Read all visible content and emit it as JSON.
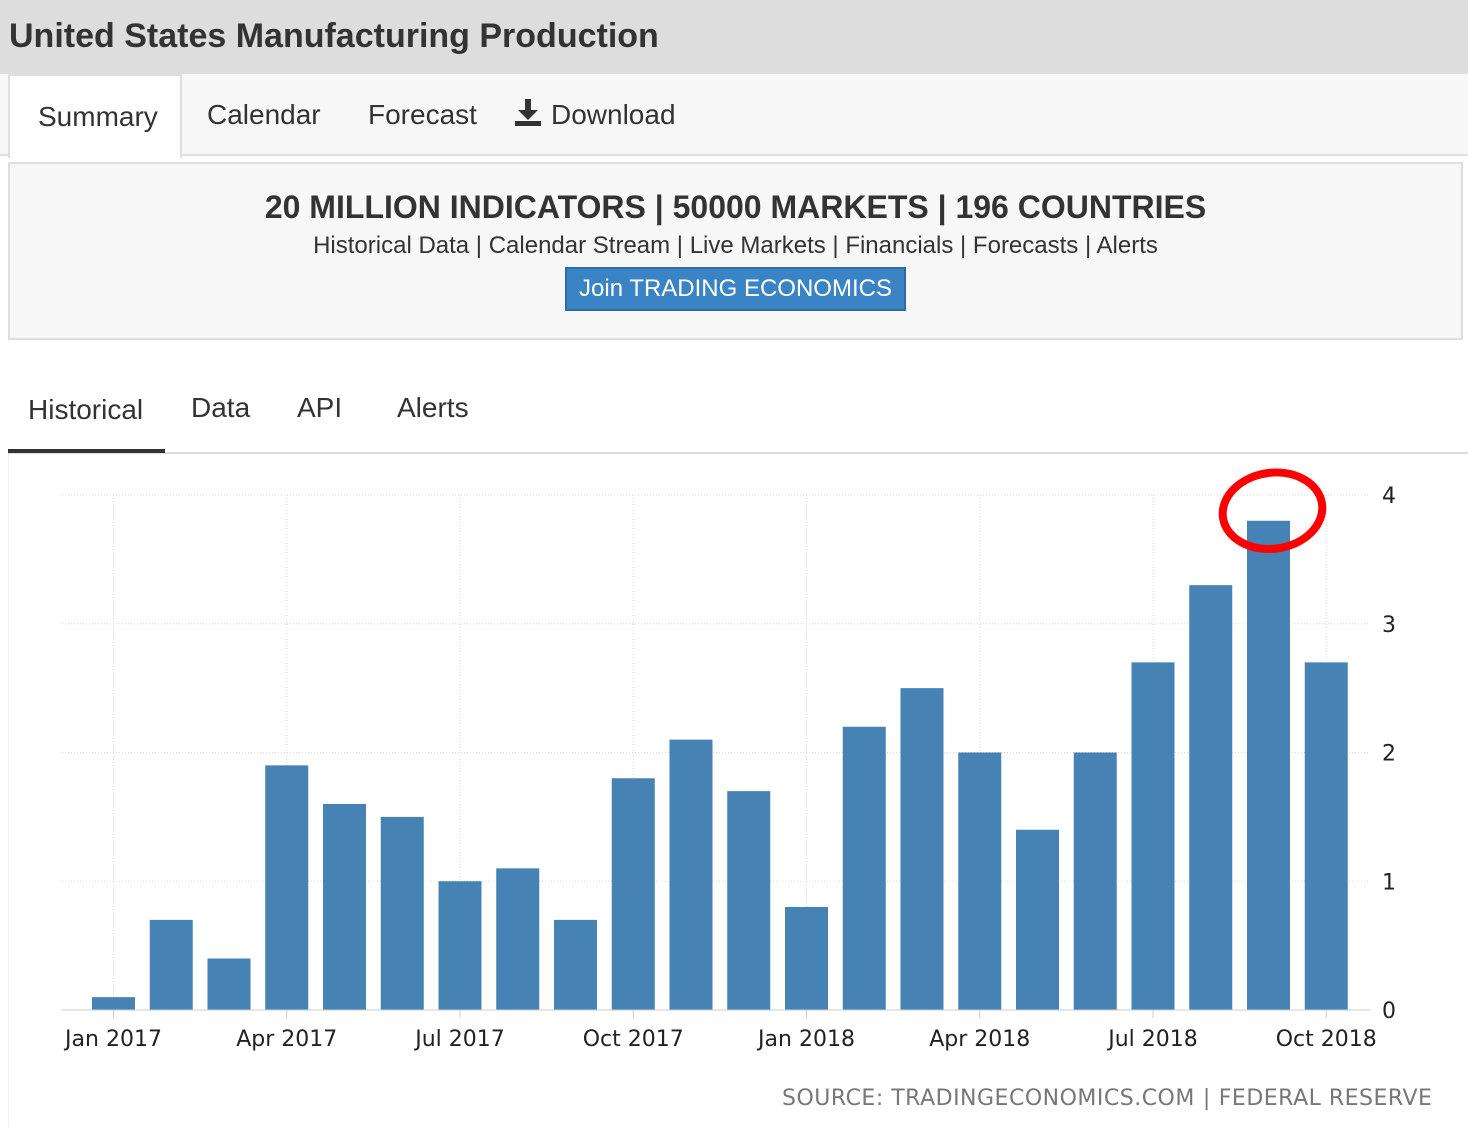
{
  "page": {
    "title": "United States Manufacturing Production"
  },
  "top_tabs": [
    {
      "label": "Summary",
      "active": true
    },
    {
      "label": "Calendar",
      "active": false
    },
    {
      "label": "Forecast",
      "active": false
    },
    {
      "label": "Download",
      "icon": "download-icon",
      "active": false
    }
  ],
  "promo": {
    "headline": "20 MILLION INDICATORS | 50000 MARKETS | 196 COUNTRIES",
    "links": "Historical Data | Calendar Stream | Live Markets | Financials | Forecasts | Alerts",
    "button": "Join TRADING ECONOMICS"
  },
  "chart_tabs": [
    {
      "label": "Historical",
      "active": true
    },
    {
      "label": "Data",
      "active": false
    },
    {
      "label": "API",
      "active": false
    },
    {
      "label": "Alerts",
      "active": false
    }
  ],
  "chart_data": {
    "type": "bar",
    "categories": [
      "Jan 2017",
      "Feb 2017",
      "Mar 2017",
      "Apr 2017",
      "May 2017",
      "Jun 2017",
      "Jul 2017",
      "Aug 2017",
      "Sep 2017",
      "Oct 2017",
      "Nov 2017",
      "Dec 2017",
      "Jan 2018",
      "Feb 2018",
      "Mar 2018",
      "Apr 2018",
      "May 2018",
      "Jun 2018",
      "Jul 2018",
      "Aug 2018",
      "Sep 2018",
      "Oct 2018"
    ],
    "values": [
      0.1,
      0.7,
      0.4,
      1.9,
      1.6,
      1.5,
      1.0,
      1.1,
      0.7,
      1.8,
      2.1,
      1.7,
      0.8,
      2.2,
      2.5,
      2.0,
      1.4,
      2.0,
      2.7,
      3.3,
      3.8,
      2.7
    ],
    "x_tick_labels": [
      "Jan 2017",
      "Apr 2017",
      "Jul 2017",
      "Oct 2017",
      "Jan 2018",
      "Apr 2018",
      "Jul 2018",
      "Oct 2018"
    ],
    "y_ticks": [
      0,
      1,
      2,
      3,
      4
    ],
    "ylim": [
      0,
      4
    ],
    "y_axis_position": "right",
    "grid": true,
    "bar_color": "#4682b4",
    "annotation": {
      "type": "hand-drawn circle",
      "target_category": "Sep 2018",
      "color": "#ff0000"
    }
  },
  "source": {
    "left": "SOURCE: TRADINGECONOMICS.COM",
    "separator": "|",
    "right": "FEDERAL RESERVE"
  }
}
